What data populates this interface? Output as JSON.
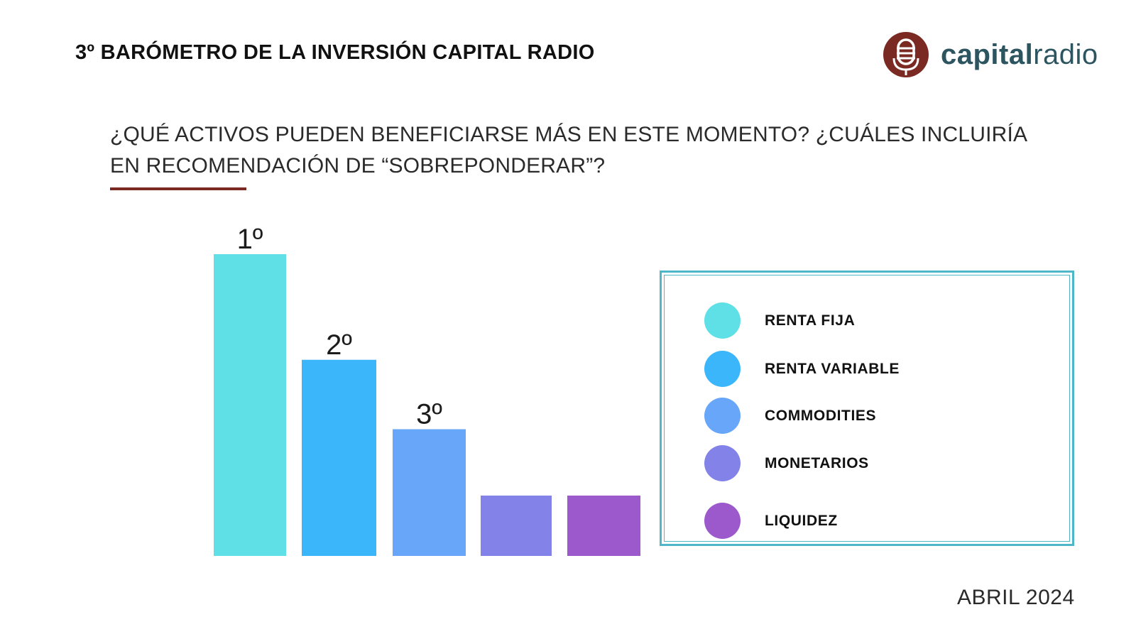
{
  "header": {
    "title": "3º BARÓMETRO DE LA INVERSIÓN CAPITAL RADIO",
    "logo": {
      "word_bold": "capital",
      "word_light": "radio",
      "brand_color": "#7a2a22",
      "icon": "microphone-globe-icon"
    }
  },
  "question": "¿QUÉ ACTIVOS PUEDEN BENEFICIARSE MÁS EN ESTE MOMENTO? ¿CUÁLES INCLUIRÍA EN RECOMENDACIÓN DE “SOBREPONDERAR”?",
  "accent_color": "#7a2a22",
  "chart_data": {
    "type": "bar",
    "title": "",
    "xlabel": "",
    "ylabel": "",
    "categories": [
      "RENTA FIJA",
      "RENTA VARIABLE",
      "COMMODITIES",
      "MONETARIOS",
      "LIQUIDEZ"
    ],
    "values": [
      5,
      3.25,
      2.1,
      1,
      1
    ],
    "ylim": [
      0,
      5
    ],
    "grid": false,
    "rank_labels": [
      "1º",
      "2º",
      "3º",
      "",
      ""
    ],
    "colors": [
      "#5fe0e6",
      "#3bb6fb",
      "#67a6f8",
      "#8282e8",
      "#9b59cc"
    ],
    "legend_position": "right"
  },
  "legend": {
    "items": [
      {
        "label": "RENTA FIJA",
        "color": "#5fe0e6"
      },
      {
        "label": "RENTA VARIABLE",
        "color": "#3bb6fb"
      },
      {
        "label": "COMMODITIES",
        "color": "#67a6f8"
      },
      {
        "label": "MONETARIOS",
        "color": "#8282e8"
      },
      {
        "label": "LIQUIDEZ",
        "color": "#9b59cc"
      }
    ]
  },
  "footer": {
    "date": "ABRIL 2024"
  }
}
